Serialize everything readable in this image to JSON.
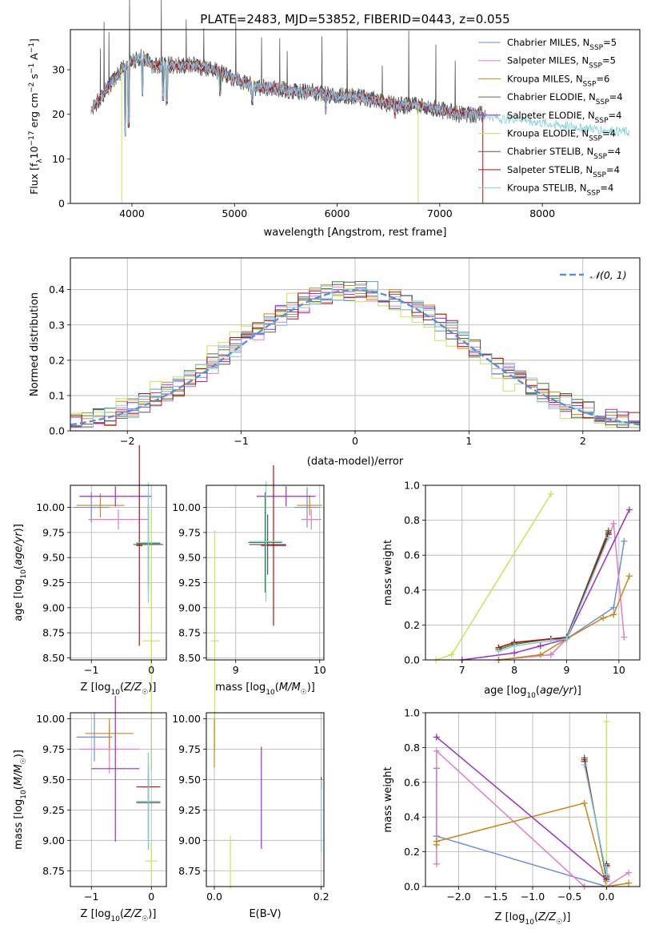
{
  "figure_title": "PLATE=2483, MJD=53852, FIBERID=0443, z=0.055",
  "colors": {
    "Chabrier MILES": "#6a8fdb",
    "Salpeter MILES": "#e37fbf",
    "Kroupa MILES": "#c8871a",
    "Chabrier ELODIE": "#4a7a2e",
    "Salpeter ELODIE": "#9a2fc4",
    "Kroupa ELODIE": "#c9e35a",
    "Chabrier STELIB": "#555555",
    "Salpeter STELIB": "#b01010",
    "Kroupa STELIB": "#7fd0d8",
    "normal_curve": "#5b8fdb"
  },
  "chart_data": [
    {
      "id": "spectrum",
      "type": "line",
      "xlabel": "wavelength [Angstrom, rest frame]",
      "ylabel": "Flux [f_λ 10^-17 erg cm^-2 s^-1 A^-1]",
      "xlim": [
        3400,
        8950
      ],
      "ylim": [
        0,
        39
      ],
      "xticks": [
        "4000",
        "5000",
        "6000",
        "7000",
        "8000"
      ],
      "yticks": [
        "0",
        "10",
        "20",
        "30"
      ],
      "legend_position": "top-right",
      "legend": [
        "Chabrier MILES, N_SSP=5",
        "Salpeter MILES, N_SSP=5",
        "Kroupa MILES, N_SSP=6",
        "Chabrier ELODIE, N_SSP=4",
        "Salpeter ELODIE, N_SSP=4",
        "Kroupa ELODIE, N_SSP=4",
        "Chabrier STELIB, N_SSP=4",
        "Salpeter STELIB, N_SSP=4",
        "Kroupa STELIB, N_SSP=4"
      ],
      "continuum": [
        [
          3600,
          21
        ],
        [
          3700,
          24
        ],
        [
          3800,
          27
        ],
        [
          3900,
          30
        ],
        [
          4000,
          32
        ],
        [
          4100,
          33
        ],
        [
          4200,
          31
        ],
        [
          4400,
          31
        ],
        [
          4600,
          31
        ],
        [
          4800,
          30
        ],
        [
          5000,
          28
        ],
        [
          5200,
          26
        ],
        [
          5400,
          26
        ],
        [
          5600,
          25
        ],
        [
          5800,
          25
        ],
        [
          6000,
          24
        ],
        [
          6200,
          24
        ],
        [
          6400,
          23
        ],
        [
          6600,
          22
        ],
        [
          6800,
          22
        ],
        [
          7000,
          21
        ],
        [
          7200,
          20
        ],
        [
          7400,
          20
        ],
        [
          7600,
          19
        ],
        [
          7800,
          19
        ],
        [
          8000,
          18
        ],
        [
          8200,
          17.5
        ],
        [
          8400,
          17
        ],
        [
          8600,
          16.5
        ],
        [
          8800,
          16
        ]
      ],
      "absorption_lines": [
        [
          3934,
          16
        ],
        [
          3968,
          18
        ],
        [
          4102,
          25
        ],
        [
          4305,
          24
        ],
        [
          4340,
          23
        ],
        [
          4861,
          25
        ],
        [
          5175,
          23
        ],
        [
          5890,
          21
        ],
        [
          6563,
          20
        ]
      ]
    },
    {
      "id": "residuals",
      "type": "line",
      "xlabel": "(data-model)/error",
      "ylabel": "Normed distribution",
      "xlim": [
        -2.5,
        2.5
      ],
      "ylim": [
        0,
        0.49
      ],
      "xticks": [
        "−2",
        "−1",
        "0",
        "1",
        "2"
      ],
      "yticks": [
        "0.0",
        "0.1",
        "0.2",
        "0.3",
        "0.4"
      ],
      "legend": [
        "𝒩(0, 1)"
      ],
      "legend_position": "top-right"
    },
    {
      "id": "age_vs_Z",
      "type": "scatter",
      "xlabel": "Z [log10(Z/Z☉)]",
      "ylabel": "age [log10(age/yr)]",
      "xlim": [
        -1.35,
        0.25
      ],
      "ylim": [
        8.48,
        10.22
      ],
      "xticks": [
        "−1",
        "0"
      ],
      "yticks": [
        "8.50",
        "8.75",
        "9.00",
        "9.25",
        "9.50",
        "9.75",
        "10.00"
      ],
      "points": [
        {
          "model": "Chabrier MILES",
          "x": -1.0,
          "y": 10.0,
          "xerr": 0.3,
          "yerr": 0.15
        },
        {
          "model": "Salpeter MILES",
          "x": -0.55,
          "y": 9.88,
          "xerr": 0.5,
          "yerr": 0.1
        },
        {
          "model": "Kroupa MILES",
          "x": -0.85,
          "y": 10.02,
          "xerr": 0.4,
          "yerr": 0.12
        },
        {
          "model": "Chabrier ELODIE",
          "x": -0.05,
          "y": 9.64,
          "xerr": 0.2,
          "yerr": 0.5
        },
        {
          "model": "Salpeter ELODIE",
          "x": -0.6,
          "y": 10.11,
          "xerr": 0.6,
          "yerr": 0.1
        },
        {
          "model": "Kroupa ELODIE",
          "x": 0.0,
          "y": 8.67,
          "xerr": 0.15,
          "yerr": 1.3
        },
        {
          "model": "Chabrier STELIB",
          "x": -0.05,
          "y": 9.63,
          "xerr": 0.25,
          "yerr": 0.4
        },
        {
          "model": "Salpeter STELIB",
          "x": -0.2,
          "y": 9.62,
          "xerr": 0.05,
          "yerr": 1.0
        },
        {
          "model": "Kroupa STELIB",
          "x": -0.05,
          "y": 9.65,
          "xerr": 0.2,
          "yerr": 0.6
        }
      ]
    },
    {
      "id": "age_vs_mass",
      "type": "scatter",
      "xlabel": "mass [log10(M/M☉)]",
      "ylabel": "",
      "xlim": [
        8.65,
        10.05
      ],
      "ylim": [
        8.48,
        10.22
      ],
      "xticks": [
        "9",
        "10"
      ],
      "yticks": [
        "8.50",
        "8.75",
        "9.00",
        "9.25",
        "9.50",
        "9.75",
        "10.00"
      ],
      "points": [
        {
          "model": "Chabrier MILES",
          "x": 9.85,
          "y": 10.0,
          "xerr": 0.15,
          "yerr": 0.2
        },
        {
          "model": "Salpeter MILES",
          "x": 9.9,
          "y": 9.88,
          "xerr": 0.12,
          "yerr": 0.1
        },
        {
          "model": "Kroupa MILES",
          "x": 9.88,
          "y": 10.02,
          "xerr": 0.15,
          "yerr": 0.1
        },
        {
          "model": "Chabrier ELODIE",
          "x": 9.35,
          "y": 9.65,
          "xerr": 0.2,
          "yerr": 0.5
        },
        {
          "model": "Salpeter ELODIE",
          "x": 9.6,
          "y": 10.11,
          "xerr": 0.35,
          "yerr": 0.1
        },
        {
          "model": "Kroupa ELODIE",
          "x": 8.75,
          "y": 8.67,
          "xerr": 0.05,
          "yerr": 1.1
        },
        {
          "model": "Chabrier STELIB",
          "x": 9.38,
          "y": 9.63,
          "xerr": 0.22,
          "yerr": 0.3
        },
        {
          "model": "Salpeter STELIB",
          "x": 9.45,
          "y": 9.62,
          "xerr": 0.15,
          "yerr": 0.8
        },
        {
          "model": "Kroupa STELIB",
          "x": 9.36,
          "y": 9.66,
          "xerr": 0.2,
          "yerr": 0.6
        }
      ]
    },
    {
      "id": "mass_weight_vs_age",
      "type": "line",
      "xlabel": "age [log10(age/yr)]",
      "ylabel": "mass weight",
      "xlim": [
        6.3,
        10.4
      ],
      "ylim": [
        0,
        1
      ],
      "xticks": [
        "7",
        "8",
        "9",
        "10"
      ],
      "yticks": [
        "0.0",
        "0.2",
        "0.4",
        "0.6",
        "0.8",
        "1.0"
      ],
      "series": [
        {
          "model": "Chabrier MILES",
          "x": [
            7.7,
            8.7,
            9.0,
            9.9,
            10.1
          ],
          "y": [
            0.0,
            0.03,
            0.12,
            0.3,
            0.68
          ]
        },
        {
          "model": "Salpeter MILES",
          "x": [
            7.7,
            8.7,
            9.0,
            9.9,
            10.1
          ],
          "y": [
            0.0,
            0.03,
            0.12,
            0.78,
            0.13
          ]
        },
        {
          "model": "Kroupa MILES",
          "x": [
            7.7,
            8.5,
            9.0,
            9.7,
            9.9,
            10.2
          ],
          "y": [
            0.0,
            0.03,
            0.12,
            0.24,
            0.26,
            0.48
          ]
        },
        {
          "model": "Chabrier ELODIE",
          "x": [
            7.7,
            8.0,
            8.7,
            9.0,
            9.8
          ],
          "y": [
            0.06,
            0.09,
            0.12,
            0.13,
            0.74
          ]
        },
        {
          "model": "Salpeter ELODIE",
          "x": [
            7.0,
            8.0,
            8.5,
            9.0,
            10.2
          ],
          "y": [
            0.0,
            0.04,
            0.08,
            0.12,
            0.86
          ]
        },
        {
          "model": "Kroupa ELODIE",
          "x": [
            6.5,
            6.8,
            8.7
          ],
          "y": [
            0.0,
            0.03,
            0.95
          ]
        },
        {
          "model": "Chabrier STELIB",
          "x": [
            7.7,
            8.0,
            8.7,
            9.0,
            9.8
          ],
          "y": [
            0.07,
            0.1,
            0.12,
            0.13,
            0.73
          ]
        },
        {
          "model": "Salpeter STELIB",
          "x": [
            7.7,
            8.0,
            8.7,
            9.0,
            9.8
          ],
          "y": [
            0.07,
            0.1,
            0.12,
            0.12,
            0.72
          ]
        },
        {
          "model": "Kroupa STELIB",
          "x": [
            7.7,
            8.0,
            8.7,
            9.0,
            9.8
          ],
          "y": [
            0.05,
            0.08,
            0.11,
            0.12,
            0.7
          ]
        }
      ]
    },
    {
      "id": "mass_vs_Z",
      "type": "scatter",
      "xlabel": "Z [log10(Z/Z☉)]",
      "ylabel": "mass [log10(M/M☉)]",
      "xlim": [
        -1.35,
        0.25
      ],
      "ylim": [
        8.62,
        10.05
      ],
      "xticks": [
        "−1",
        "0"
      ],
      "yticks": [
        "8.75",
        "9.00",
        "9.25",
        "9.50",
        "9.75",
        "10.00"
      ],
      "points": [
        {
          "model": "Chabrier MILES",
          "x": -0.95,
          "y": 9.85,
          "xerr": 0.3,
          "yerr": 0.2
        },
        {
          "model": "Salpeter MILES",
          "x": -0.7,
          "y": 9.75,
          "xerr": 0.5,
          "yerr": 0.2
        },
        {
          "model": "Kroupa MILES",
          "x": -0.7,
          "y": 9.88,
          "xerr": 0.4,
          "yerr": 0.12
        },
        {
          "model": "Chabrier ELODIE",
          "x": -0.05,
          "y": 9.32,
          "xerr": 0.2,
          "yerr": 0.4
        },
        {
          "model": "Salpeter ELODIE",
          "x": -0.6,
          "y": 9.59,
          "xerr": 0.4,
          "yerr": 0.6
        },
        {
          "model": "Kroupa ELODIE",
          "x": 0.0,
          "y": 8.83,
          "xerr": 0.1,
          "yerr": 0.15
        },
        {
          "model": "Chabrier STELIB",
          "x": -0.05,
          "y": 9.31,
          "xerr": 0.2,
          "yerr": 0.3
        },
        {
          "model": "Salpeter STELIB",
          "x": -0.05,
          "y": 9.44,
          "xerr": 0.2,
          "yerr": 0.1
        },
        {
          "model": "Kroupa STELIB",
          "x": -0.05,
          "y": 9.32,
          "xerr": 0.2,
          "yerr": 0.4
        }
      ]
    },
    {
      "id": "mass_vs_EBV",
      "type": "scatter",
      "xlabel": "E(B-V)",
      "ylabel": "",
      "xlim": [
        -0.015,
        0.205
      ],
      "ylim": [
        8.62,
        10.05
      ],
      "xticks": [
        "0.0",
        "0.2"
      ],
      "yticks": [
        "8.75",
        "9.00",
        "9.25",
        "9.50",
        "9.75",
        "10.00"
      ],
      "points": [
        {
          "model": "Kroupa MILES",
          "x": 0.0,
          "y": 9.8,
          "xerr": 0,
          "yerr": 0.2
        },
        {
          "model": "Kroupa ELODIE",
          "x": 0.03,
          "y": 8.82,
          "xerr": 0,
          "yerr": 0.22
        },
        {
          "model": "Salpeter ELODIE",
          "x": 0.088,
          "y": 9.35,
          "xerr": 0,
          "yerr": 0.42
        },
        {
          "model": "Salpeter STELIB",
          "x": 0.2,
          "y": 9.47,
          "xerr": 0,
          "yerr": 0.05
        },
        {
          "model": "Kroupa STELIB",
          "x": 0.2,
          "y": 9.2,
          "xerr": 0,
          "yerr": 0.3
        }
      ]
    },
    {
      "id": "mass_weight_vs_Z",
      "type": "line",
      "xlabel": "Z [log10(Z/Z☉)]",
      "ylabel": "mass weight",
      "xlim": [
        -2.45,
        0.45
      ],
      "ylim": [
        0,
        1
      ],
      "xticks": [
        "−2.0",
        "−1.5",
        "−1.0",
        "−0.5",
        "0.0"
      ],
      "yticks": [
        "0.0",
        "0.2",
        "0.4",
        "0.6",
        "0.8",
        "1.0"
      ],
      "series": [
        {
          "model": "Chabrier MILES",
          "x": [
            -2.3,
            -2.3,
            0.0,
            0.0
          ],
          "y": [
            0.68,
            0.29,
            0.0,
            0.03
          ]
        },
        {
          "model": "Salpeter MILES",
          "x": [
            -2.3,
            -2.3,
            -0.3,
            0.0,
            0.3
          ],
          "y": [
            0.13,
            0.78,
            0.0,
            0.0,
            0.08
          ]
        },
        {
          "model": "Kroupa MILES",
          "x": [
            -2.3,
            -2.3,
            -0.3,
            0.0,
            0.3
          ],
          "y": [
            0.24,
            0.26,
            0.48,
            0.0,
            0.02
          ]
        },
        {
          "model": "Chabrier ELODIE",
          "x": [
            -0.3,
            0.0,
            0.0
          ],
          "y": [
            0.74,
            0.04,
            0.12
          ]
        },
        {
          "model": "Salpeter ELODIE",
          "x": [
            -2.3,
            0.0,
            0.0
          ],
          "y": [
            0.86,
            0.04,
            0.12
          ]
        },
        {
          "model": "Kroupa ELODIE",
          "x": [
            0.0,
            0.0
          ],
          "y": [
            0.95,
            0.0
          ]
        },
        {
          "model": "Chabrier STELIB",
          "x": [
            -0.3,
            0.0,
            0.0
          ],
          "y": [
            0.73,
            0.05,
            0.13
          ]
        },
        {
          "model": "Salpeter STELIB",
          "x": [
            -0.3,
            0.0,
            0.0
          ],
          "y": [
            0.72,
            0.06,
            0.12
          ]
        },
        {
          "model": "Kroupa STELIB",
          "x": [
            -0.3,
            0.0,
            0.0
          ],
          "y": [
            0.7,
            0.07,
            0.11
          ]
        }
      ]
    }
  ]
}
